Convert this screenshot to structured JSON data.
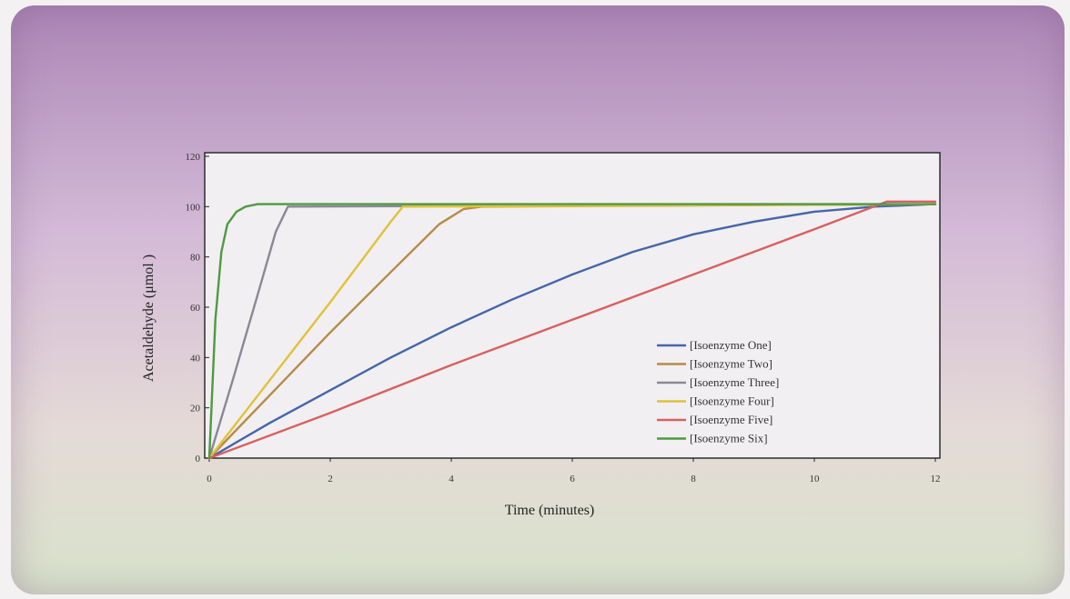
{
  "chart_data": {
    "type": "line",
    "xlabel": "Time (minutes)",
    "ylabel": "Acetaldehyde (μmol )",
    "xlim": [
      0,
      12
    ],
    "ylim": [
      0,
      120
    ],
    "x_ticks": [
      "0",
      "2",
      "4",
      "6",
      "8",
      "10",
      "12"
    ],
    "y_ticks": [
      "0",
      "20",
      "40",
      "60",
      "80",
      "100",
      "120"
    ],
    "grid": false,
    "legend_position": "right-middle",
    "series": [
      {
        "name": "[Isoenzyme One]",
        "color": "#4466aa",
        "x": [
          0,
          1,
          2,
          3,
          4,
          5,
          6,
          7,
          8,
          9,
          10,
          11,
          12
        ],
        "y": [
          0,
          14,
          27,
          40,
          52,
          63,
          73,
          82,
          89,
          94,
          98,
          100,
          101
        ]
      },
      {
        "name": "[Isoenzyme Two]",
        "color": "#b88a4a",
        "x": [
          0,
          1,
          2,
          3,
          3.8,
          4.2,
          4.5,
          12
        ],
        "y": [
          0,
          25,
          50,
          74,
          93,
          99,
          100,
          101
        ]
      },
      {
        "name": "[Isoenzyme Three]",
        "color": "#8a8898",
        "x": [
          0,
          0.4,
          0.8,
          1.1,
          1.3,
          12
        ],
        "y": [
          0,
          32,
          65,
          90,
          100,
          101
        ]
      },
      {
        "name": "[Isoenzyme Four]",
        "color": "#e0c238",
        "x": [
          0,
          1,
          2,
          3,
          3.2,
          12
        ],
        "y": [
          0,
          31,
          62,
          94,
          100,
          101
        ]
      },
      {
        "name": "[Isoenzyme Five]",
        "color": "#d86060",
        "x": [
          0,
          2,
          4,
          6,
          8,
          10,
          11.2,
          12
        ],
        "y": [
          0,
          18,
          37,
          55,
          73,
          91,
          102,
          102
        ]
      },
      {
        "name": "[Isoenzyme Six]",
        "color": "#4e9a40",
        "x": [
          0,
          0.1,
          0.2,
          0.3,
          0.45,
          0.6,
          0.8,
          12
        ],
        "y": [
          0,
          55,
          82,
          93,
          98,
          100,
          101,
          101
        ]
      }
    ]
  }
}
